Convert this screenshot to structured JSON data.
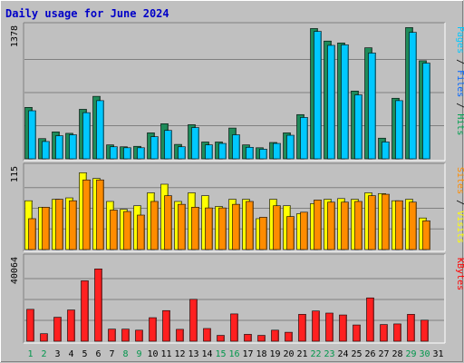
{
  "chart_data": {
    "type": "bar",
    "title": "Daily usage for June 2024",
    "categories": [
      "1",
      "2",
      "3",
      "4",
      "5",
      "6",
      "7",
      "8",
      "9",
      "10",
      "11",
      "12",
      "13",
      "14",
      "15",
      "16",
      "17",
      "18",
      "19",
      "20",
      "21",
      "22",
      "23",
      "24",
      "25",
      "26",
      "27",
      "28",
      "29",
      "30",
      "31"
    ],
    "weekend_days": [
      "1",
      "2",
      "8",
      "9",
      "15",
      "16",
      "22",
      "23",
      "29",
      "30"
    ],
    "panels": [
      {
        "id": "top",
        "ymax_label": "1378",
        "ylim": [
          0,
          1378
        ],
        "legend": [
          {
            "text": "Pages",
            "color": "#00c8ff"
          },
          {
            "text": " / ",
            "color": "#000000"
          },
          {
            "text": "Files",
            "color": "#0064ff"
          },
          {
            "text": " / ",
            "color": "#000000"
          },
          {
            "text": "Hits",
            "color": "#00a050"
          }
        ],
        "series": [
          {
            "name": "Hits",
            "color": "#1e8b5a",
            "values": [
              535,
              210,
              280,
              265,
              515,
              650,
              145,
              125,
              130,
              270,
              365,
              150,
              355,
              175,
              175,
              320,
              145,
              115,
              170,
              270,
              460,
              1355,
              1225,
              1205,
              705,
              1155,
              215,
              630,
              1365,
              1020,
              0
            ]
          },
          {
            "name": "Pages",
            "color": "#00c8ff",
            "values": [
              500,
              180,
              240,
              250,
              480,
              605,
              125,
              115,
              115,
              230,
              295,
              125,
              325,
              145,
              160,
              250,
              120,
              100,
              160,
              245,
              430,
              1325,
              1180,
              1185,
              665,
              1100,
              175,
              605,
              1315,
              995,
              0
            ]
          }
        ]
      },
      {
        "id": "middle",
        "ymax_label": "115",
        "ylim": [
          0,
          115
        ],
        "legend": [
          {
            "text": "Sites",
            "color": "#ff8c00"
          },
          {
            "text": " / ",
            "color": "#000000"
          },
          {
            "text": "Visits",
            "color": "#ffff00"
          }
        ],
        "series": [
          {
            "name": "Visits",
            "color": "#ffff00",
            "values": [
              68,
              59,
              70,
              72,
              107,
              99,
              67,
              56,
              61,
              79,
              91,
              67,
              79,
              75,
              60,
              70,
              70,
              43,
              70,
              61,
              50,
              64,
              70,
              71,
              70,
              79,
              78,
              68,
              70,
              44,
              0
            ]
          },
          {
            "name": "Sites",
            "color": "#ff8c00",
            "values": [
              43,
              59,
              70,
              68,
              97,
              97,
              55,
              53,
              48,
              67,
              75,
              63,
              59,
              58,
              58,
              63,
              67,
              45,
              61,
              46,
              52,
              69,
              66,
              66,
              67,
              75,
              77,
              68,
              66,
              40,
              0
            ]
          }
        ]
      },
      {
        "id": "bottom",
        "ymax_label": "40064",
        "ylim": [
          0,
          40064
        ],
        "legend": [
          {
            "text": "KBytes",
            "color": "#ff0000"
          }
        ],
        "series": [
          {
            "name": "KBytes",
            "color": "#ff2020",
            "values": [
              15300,
              3600,
              11500,
              15000,
              29000,
              34700,
              5800,
              5800,
              5300,
              11300,
              14700,
              5700,
              20100,
              6100,
              2800,
              13100,
              3300,
              2800,
              5300,
              4300,
              12900,
              14500,
              13500,
              12600,
              7800,
              20800,
              8000,
              8300,
              12900,
              10100,
              0
            ]
          }
        ]
      }
    ]
  }
}
